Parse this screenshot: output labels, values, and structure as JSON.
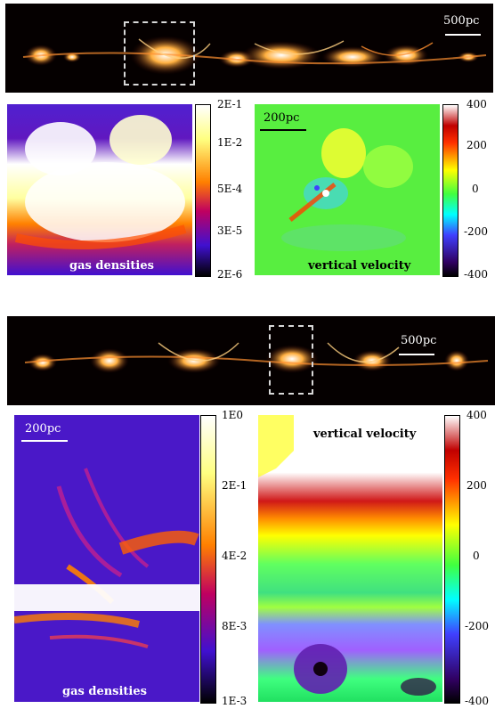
{
  "top": {
    "strip_scale_label": "500pc",
    "density_caption": "gas densities",
    "velocity_caption": "vertical velocity",
    "velocity_scale_label": "200pc",
    "density_ticks": [
      "2E-1",
      "1E-2",
      "5E-4",
      "3E-5",
      "2E-6"
    ],
    "velocity_ticks": [
      "400",
      "200",
      "0",
      "-200",
      "-400"
    ]
  },
  "bottom": {
    "strip_scale_label": "500pc",
    "density_caption": "gas densities",
    "density_scale_label": "200pc",
    "velocity_caption": "vertical velocity",
    "density_ticks": [
      "1E0",
      "2E-1",
      "4E-2",
      "8E-3",
      "1E-3"
    ],
    "velocity_ticks": [
      "400",
      "200",
      "0",
      "-200",
      "-400"
    ]
  },
  "colors": {
    "density_colormap": [
      "#ffffff",
      "#ffff80",
      "#ff8000",
      "#c00060",
      "#4010d0",
      "#000000"
    ],
    "velocity_colormap": [
      "#ffffff",
      "#c00000",
      "#ff3000",
      "#ffff00",
      "#40ff40",
      "#00ffff",
      "#4040ff",
      "#300060",
      "#000000"
    ]
  }
}
